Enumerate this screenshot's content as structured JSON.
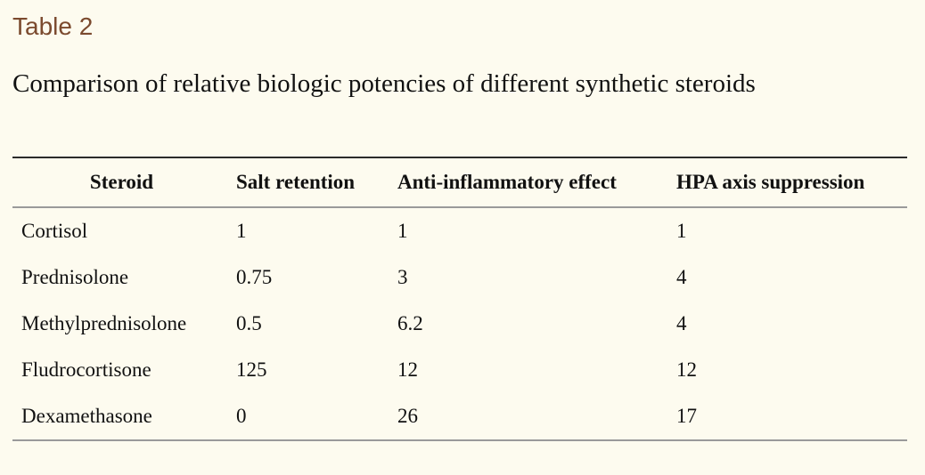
{
  "table_label": "Table 2",
  "caption": "Comparison of relative biologic potencies of different synthetic steroids",
  "table": {
    "headers": [
      "Steroid",
      "Salt retention",
      "Anti-inflammatory effect",
      "HPA axis suppression"
    ],
    "rows": [
      [
        "Cortisol",
        "1",
        "1",
        "1"
      ],
      [
        "Prednisolone",
        "0.75",
        "3",
        "4"
      ],
      [
        "Methylprednisolone",
        "0.5",
        "6.2",
        "4"
      ],
      [
        "Fludrocortisone",
        "125",
        "12",
        "12"
      ],
      [
        "Dexamethasone",
        "0",
        "26",
        "17"
      ]
    ]
  },
  "colors": {
    "background": "#fdfbef",
    "label": "#7b4a2e",
    "text": "#111111",
    "rule": "#9a9a9a"
  }
}
